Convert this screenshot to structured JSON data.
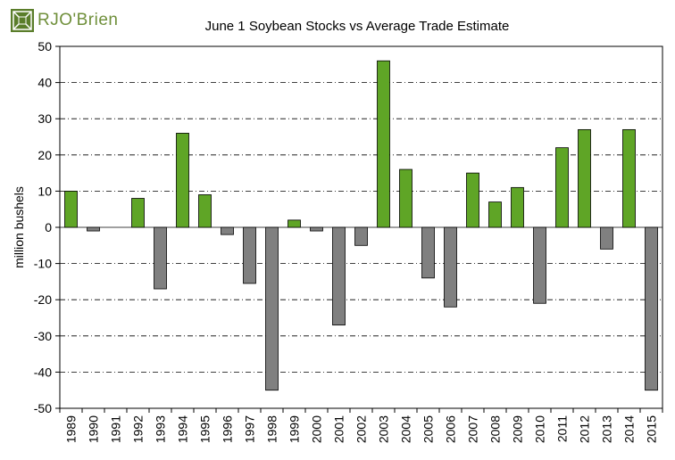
{
  "logo": {
    "text": "RJO'Brien",
    "colors": {
      "mark": "#5a7d2a",
      "text": "#6f8f3a"
    }
  },
  "chart_data": {
    "type": "bar",
    "title": "June 1 Soybean Stocks vs Average Trade Estimate",
    "xlabel": "",
    "ylabel": "million bushels",
    "ylim": [
      -50,
      50
    ],
    "yticks": [
      -50,
      -40,
      -30,
      -20,
      -10,
      0,
      10,
      20,
      30,
      40,
      50
    ],
    "grid": true,
    "legend": "none",
    "categories": [
      "1989",
      "1990",
      "1991",
      "1992",
      "1993",
      "1994",
      "1995",
      "1996",
      "1997",
      "1998",
      "1999",
      "2000",
      "2001",
      "2002",
      "2003",
      "2004",
      "2005",
      "2006",
      "2007",
      "2008",
      "2009",
      "2010",
      "2011",
      "2012",
      "2013",
      "2014",
      "2015"
    ],
    "values": [
      10,
      -1,
      0,
      8,
      -17,
      26,
      9,
      -2,
      -15.5,
      -45,
      2,
      -1,
      -27,
      -5,
      46,
      16,
      -14,
      -22,
      15,
      7,
      11,
      -21,
      22,
      27,
      -6,
      27,
      -45
    ],
    "colors": {
      "positive": "#5fa526",
      "negative": "#808080",
      "bar_outline": "#000000",
      "grid": "#000000",
      "axis": "#000000"
    }
  }
}
